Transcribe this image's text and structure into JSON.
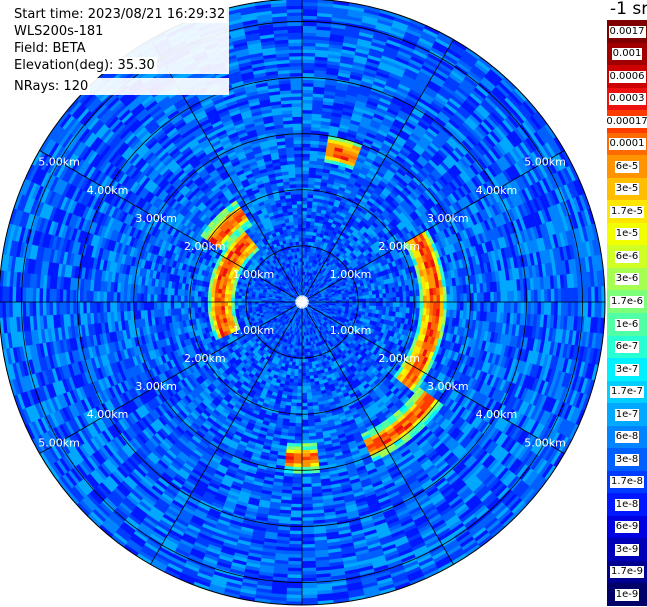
{
  "header": {
    "lines": [
      "Start time: 2023/08/21 16:29:32",
      "WLS200s-181",
      "Field: BETA",
      "Elevation(deg): 35.30",
      "NRays: 120"
    ]
  },
  "colorbar": {
    "units": "-1 sr",
    "levels": [
      "0.0017",
      "0.001",
      "0.0006",
      "0.0003",
      "0.00017",
      "0.0001",
      "6e-5",
      "3e-5",
      "1.7e-5",
      "1e-5",
      "6e-6",
      "3e-6",
      "1.7e-6",
      "1e-6",
      "6e-7",
      "3e-7",
      "1.7e-7",
      "1e-7",
      "6e-8",
      "3e-8",
      "1.7e-8",
      "1e-8",
      "6e-9",
      "3e-9",
      "1.7e-9",
      "1e-9"
    ],
    "colors": [
      "#800000",
      "#a00000",
      "#cc0000",
      "#ee1010",
      "#ff3c00",
      "#ff6a00",
      "#ff9400",
      "#ffbe00",
      "#ffe600",
      "#f2ff00",
      "#cfff25",
      "#a6ff50",
      "#7dff7a",
      "#50ffa6",
      "#28ffd2",
      "#00f0ff",
      "#00cfff",
      "#00a8ff",
      "#0084ff",
      "#0060ff",
      "#003cff",
      "#0018ff",
      "#0000e0",
      "#0000b8",
      "#000090",
      "#000068"
    ]
  },
  "chart_data": {
    "type": "polar_scan",
    "field": "BETA",
    "max_range_km": 5.4,
    "rings_km": [
      1,
      2,
      3,
      4,
      5
    ],
    "ring_labels": [
      "1.00km",
      "2.00km",
      "3.00km",
      "4.00km",
      "5.00km"
    ],
    "spoke_step_deg": 30,
    "rays": 120,
    "features": [
      {
        "kind": "arc",
        "center_az_deg": 95,
        "span_deg": 70,
        "range_km": 2.35,
        "level": "3e-5"
      },
      {
        "kind": "arc",
        "center_az_deg": 142,
        "span_deg": 30,
        "range_km": 2.85,
        "level": "3e-5"
      },
      {
        "kind": "arc",
        "center_az_deg": 283,
        "span_deg": 75,
        "range_km": 1.45,
        "level": "3e-5"
      },
      {
        "kind": "arc",
        "center_az_deg": 315,
        "span_deg": 25,
        "range_km": 1.9,
        "level": "3e-5"
      },
      {
        "kind": "arc",
        "center_az_deg": 15,
        "span_deg": 14,
        "range_km": 2.75,
        "level": "3e-5"
      },
      {
        "kind": "arc",
        "center_az_deg": 180,
        "span_deg": 12,
        "range_km": 2.8,
        "level": "3e-5"
      }
    ]
  }
}
